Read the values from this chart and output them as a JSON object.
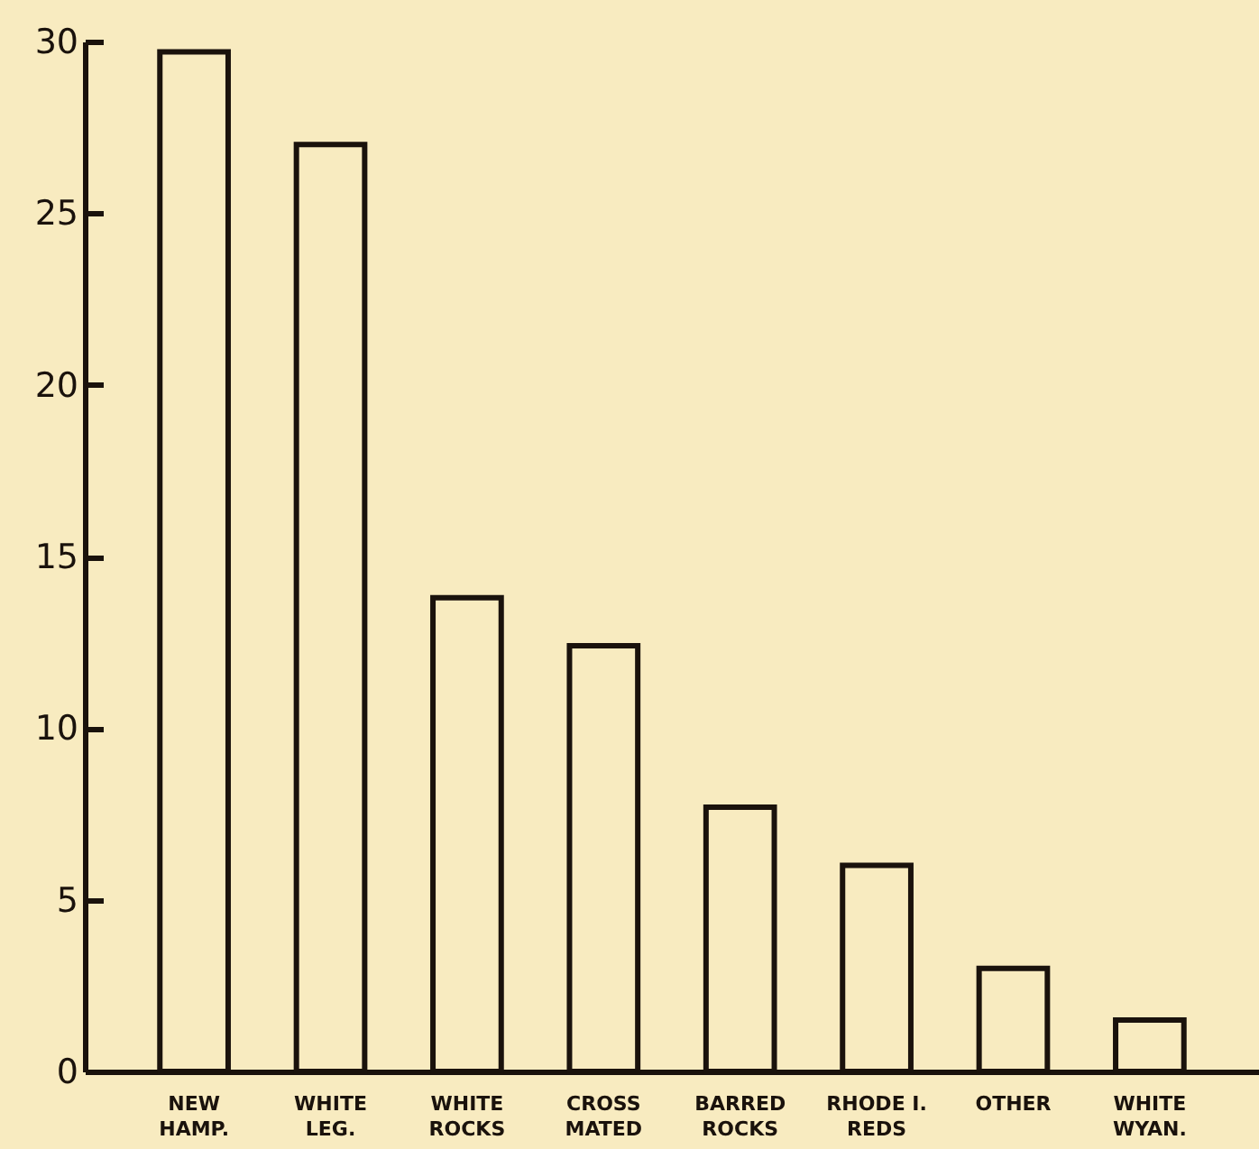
{
  "chart_data": {
    "type": "bar",
    "categories": [
      "NEW\nHAMP.",
      "WHITE\nLEG.",
      "WHITE\nROCKS",
      "CROSS\nMATED",
      "BARRED\nROCKS",
      "RHODE I.\nREDS",
      "OTHER",
      "WHITE\nWYAN."
    ],
    "values": [
      29.7,
      27.0,
      13.8,
      12.4,
      7.7,
      6.0,
      3.0,
      1.5
    ],
    "color": "#f8ebc0",
    "ylim": [
      0,
      30
    ],
    "yticks": [
      0,
      5,
      10,
      15,
      20,
      25,
      30
    ],
    "grid": false
  }
}
